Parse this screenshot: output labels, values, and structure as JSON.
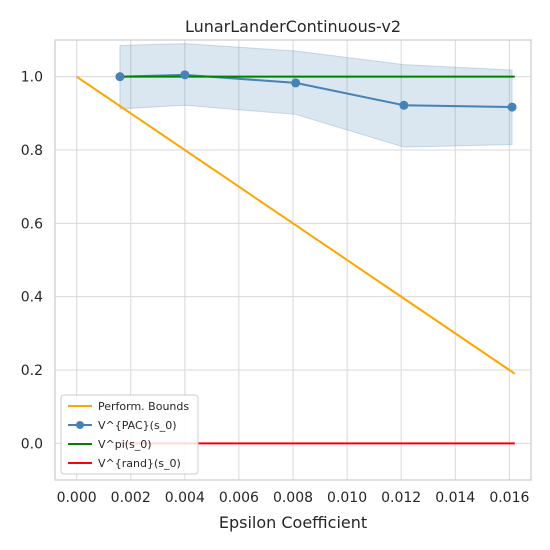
{
  "chart_data": {
    "type": "line",
    "title": "LunarLanderContinuous-v2",
    "xlabel": "Epsilon Coefficient",
    "ylabel": "",
    "xlim": [
      -0.0008,
      0.0168
    ],
    "ylim": [
      -0.1,
      1.1
    ],
    "xticks": [
      0.0,
      0.002,
      0.004,
      0.006,
      0.008,
      0.01,
      0.012,
      0.014,
      0.016
    ],
    "xtick_labels": [
      "0.000",
      "0.002",
      "0.004",
      "0.006",
      "0.008",
      "0.010",
      "0.012",
      "0.014",
      "0.016"
    ],
    "yticks": [
      0.0,
      0.2,
      0.4,
      0.6,
      0.8,
      1.0
    ],
    "ytick_labels": [
      "0.0",
      "0.2",
      "0.4",
      "0.6",
      "0.8",
      "1.0"
    ],
    "grid": true,
    "legend_position": "lower-left",
    "series": [
      {
        "name": "Perform. Bounds",
        "color": "#ffa500",
        "marker": false,
        "x": [
          0.0,
          0.0162
        ],
        "y": [
          1.0,
          0.19
        ]
      },
      {
        "name": "V^{PAC}(s_0)",
        "color": "#4682b4",
        "marker": true,
        "x": [
          0.0016,
          0.004,
          0.0081,
          0.0121,
          0.0161
        ],
        "y": [
          1.0,
          1.005,
          0.983,
          0.922,
          0.917
        ],
        "band_upper": [
          1.085,
          1.09,
          1.07,
          1.033,
          1.018
        ],
        "band_lower": [
          0.912,
          0.922,
          0.897,
          0.808,
          0.815
        ]
      },
      {
        "name": "V^pi(s_0)",
        "color": "#008000",
        "marker": false,
        "x": [
          0.0016,
          0.0162
        ],
        "y": [
          1.0,
          1.0
        ]
      },
      {
        "name": "V^{rand}(s_0)",
        "color": "#ff0000",
        "marker": false,
        "x": [
          0.0016,
          0.0162
        ],
        "y": [
          0.0,
          0.0
        ]
      }
    ]
  }
}
